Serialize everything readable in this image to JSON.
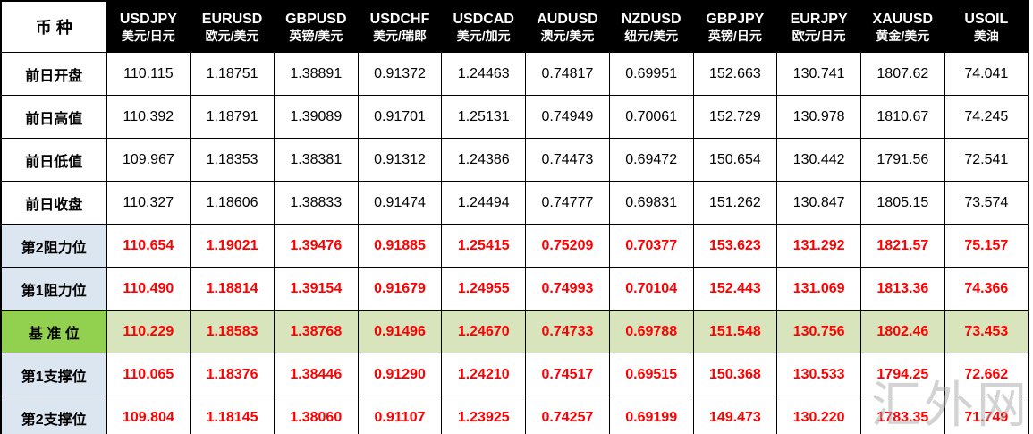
{
  "watermark": "汇外网",
  "colors": {
    "header_bg": "#000000",
    "header_text": "#ffffff",
    "level_label_bg": "#dce6f1",
    "base_label_bg": "#92d050",
    "base_row_bg": "#d8e4bc",
    "highlight_value": "#ff0000",
    "border": "#000000"
  },
  "chart_data": {
    "type": "table",
    "corner_label": "币 种",
    "columns": [
      {
        "code": "USDJPY",
        "name": "美元/日元"
      },
      {
        "code": "EURUSD",
        "name": "欧元/美元"
      },
      {
        "code": "GBPUSD",
        "name": "英镑/美元"
      },
      {
        "code": "USDCHF",
        "name": "美元/瑞郎"
      },
      {
        "code": "USDCAD",
        "name": "美元/加元"
      },
      {
        "code": "AUDUSD",
        "name": "澳元/美元"
      },
      {
        "code": "NZDUSD",
        "name": "纽元/美元"
      },
      {
        "code": "GBPJPY",
        "name": "英镑/日元"
      },
      {
        "code": "EURJPY",
        "name": "欧元/日元"
      },
      {
        "code": "XAUUSD",
        "name": "黄金/美元"
      },
      {
        "code": "USOIL",
        "name": "美油"
      }
    ],
    "rows": [
      {
        "label": "前日开盘",
        "style": "plain",
        "values": [
          "110.115",
          "1.18751",
          "1.38891",
          "0.91372",
          "1.24463",
          "0.74817",
          "0.69951",
          "152.663",
          "130.741",
          "1807.62",
          "74.041"
        ]
      },
      {
        "label": "前日高值",
        "style": "plain",
        "values": [
          "110.392",
          "1.18791",
          "1.39089",
          "0.91701",
          "1.25131",
          "0.74949",
          "0.70061",
          "152.729",
          "130.978",
          "1810.67",
          "74.245"
        ]
      },
      {
        "label": "前日低值",
        "style": "plain",
        "values": [
          "109.967",
          "1.18353",
          "1.38381",
          "0.91312",
          "1.24386",
          "0.74473",
          "0.69472",
          "150.654",
          "130.442",
          "1791.56",
          "72.541"
        ]
      },
      {
        "label": "前日收盘",
        "style": "plain",
        "values": [
          "110.327",
          "1.18606",
          "1.38833",
          "0.91474",
          "1.24494",
          "0.74777",
          "0.69831",
          "151.262",
          "130.847",
          "1805.15",
          "73.574"
        ]
      },
      {
        "label": "第2阻力位",
        "style": "level",
        "values": [
          "110.654",
          "1.19021",
          "1.39476",
          "0.91885",
          "1.25415",
          "0.75209",
          "0.70377",
          "153.623",
          "131.292",
          "1821.57",
          "75.157"
        ]
      },
      {
        "label": "第1阻力位",
        "style": "level",
        "values": [
          "110.490",
          "1.18814",
          "1.39154",
          "0.91679",
          "1.24955",
          "0.74993",
          "0.70104",
          "152.443",
          "131.069",
          "1813.36",
          "74.366"
        ]
      },
      {
        "label": "基 准 位",
        "style": "base",
        "values": [
          "110.229",
          "1.18583",
          "1.38768",
          "0.91496",
          "1.24670",
          "0.74733",
          "0.69788",
          "151.548",
          "130.756",
          "1802.46",
          "73.453"
        ]
      },
      {
        "label": "第1支撑位",
        "style": "level",
        "values": [
          "110.065",
          "1.18376",
          "1.38446",
          "0.91290",
          "1.24210",
          "0.74517",
          "0.69515",
          "150.368",
          "130.533",
          "1794.25",
          "72.662"
        ]
      },
      {
        "label": "第2支撑位",
        "style": "level",
        "values": [
          "109.804",
          "1.18145",
          "1.38060",
          "0.91107",
          "1.23925",
          "0.74257",
          "0.69199",
          "149.473",
          "130.220",
          "1783.35",
          "71.749"
        ]
      }
    ]
  }
}
